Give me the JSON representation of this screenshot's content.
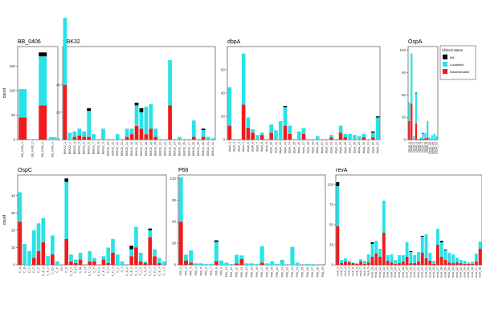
{
  "legend": {
    "title": "Clinical status",
    "entries": [
      {
        "name": "NA",
        "color": "#000000"
      },
      {
        "name": "Localized",
        "color": "#29e2e8"
      },
      {
        "name": "Disseminated",
        "color": "#ee1c1c"
      }
    ]
  },
  "chart_data": [
    {
      "type": "bar",
      "title": "BB_0406",
      "ylabel": "count",
      "ylim": [
        0,
        190
      ],
      "yticks": [
        0,
        50,
        100,
        150
      ],
      "categories": [
        "BB_0406_1",
        "BB_0406_2",
        "BB_0406_3",
        "BB_0406_4"
      ],
      "series": [
        {
          "name": "Disseminated",
          "values": [
            45,
            0,
            70,
            0
          ]
        },
        {
          "name": "Localized",
          "values": [
            58,
            0,
            100,
            5
          ]
        },
        {
          "name": "NA",
          "values": [
            0,
            0,
            8,
            0
          ]
        }
      ]
    },
    {
      "type": "bar",
      "title": "BBK32",
      "ylabel": "",
      "ylim": [
        0,
        68
      ],
      "yticks": [
        0,
        20,
        40
      ],
      "categories": [
        "BBK32_1",
        "BBK32_2",
        "BBK32_3",
        "BBK32_4",
        "BBK32_5",
        "BBK32_6",
        "BBK32_7",
        "BBK32_8",
        "BBK32_9",
        "BBK32_10",
        "BBK32_11",
        "BBK32_12",
        "BBK32_13",
        "BBK32_14",
        "BBK32_15",
        "BBK32_16",
        "BBK32_17",
        "BBK32_18",
        "BBK32_19",
        "BBK32_20",
        "BBK32_21",
        "BBK32_22",
        "BBK32_23",
        "BBK32_24",
        "BBK32_25",
        "BBK32_26",
        "BBK32_27",
        "BBK32_28",
        "BBK32_29",
        "BBK32_30",
        "BBK32_31",
        "BBK32_32"
      ],
      "series": [
        {
          "name": "Disseminated",
          "values": [
            40,
            0,
            2,
            3,
            2,
            2,
            0,
            0,
            0,
            0,
            0,
            0,
            0,
            2,
            4,
            10,
            8,
            4,
            8,
            2,
            0,
            0,
            25,
            0,
            0,
            0,
            0,
            2,
            0,
            2,
            0,
            0
          ]
        },
        {
          "name": "Localized",
          "values": [
            49,
            5,
            4,
            5,
            4,
            19,
            4,
            0,
            8,
            0,
            0,
            4,
            0,
            6,
            4,
            15,
            12,
            20,
            18,
            6,
            0,
            0,
            33,
            0,
            2,
            0,
            0,
            12,
            0,
            5,
            2,
            1
          ]
        },
        {
          "name": "NA",
          "values": [
            0,
            0,
            0,
            0,
            0,
            2,
            0,
            0,
            0,
            0,
            0,
            0,
            0,
            0,
            0,
            2,
            3,
            0,
            0,
            0,
            0,
            0,
            0,
            0,
            0,
            0,
            0,
            0,
            0,
            1,
            0,
            0
          ]
        }
      ]
    },
    {
      "type": "bar",
      "title": "dbpA",
      "ylabel": "",
      "ylim": [
        0,
        80
      ],
      "yticks": [
        0,
        20,
        40,
        60
      ],
      "categories": [
        "dbpA_1",
        "dbpA_2",
        "dbpA_3",
        "dbpA_4",
        "dbpA_5",
        "dbpA_6",
        "dbpA_7",
        "dbpA_8",
        "dbpA_9",
        "dbpA_10",
        "dbpA_11",
        "dbpA_12",
        "dbpA_13",
        "dbpA_14",
        "dbpA_15",
        "dbpA_16",
        "dbpA_17",
        "dbpA_18",
        "dbpA_19",
        "dbpA_20",
        "dbpA_21",
        "dbpA_22",
        "dbpA_23",
        "dbpA_24",
        "dbpA_25",
        "dbpA_26",
        "dbpA_27",
        "dbpA_28",
        "dbpA_29",
        "dbpA_30",
        "dbpA_31",
        "dbpA_32",
        "dbpA_33"
      ],
      "series": [
        {
          "name": "Disseminated",
          "values": [
            12,
            0,
            0,
            30,
            10,
            6,
            0,
            4,
            0,
            6,
            0,
            0,
            12,
            5,
            0,
            0,
            5,
            0,
            0,
            0,
            0,
            0,
            2,
            0,
            6,
            2,
            0,
            0,
            0,
            2,
            0,
            2,
            0
          ]
        },
        {
          "name": "Localized",
          "values": [
            33,
            0,
            0,
            44,
            9,
            3,
            4,
            2,
            0,
            7,
            8,
            16,
            16,
            7,
            0,
            7,
            5,
            0,
            0,
            3,
            0,
            0,
            2,
            0,
            6,
            3,
            5,
            4,
            3,
            3,
            0,
            4,
            19
          ]
        },
        {
          "name": "NA",
          "values": [
            0,
            0,
            0,
            0,
            0,
            0,
            0,
            0,
            0,
            0,
            0,
            0,
            1,
            0,
            0,
            0,
            0,
            0,
            0,
            0,
            0,
            0,
            0,
            0,
            0,
            0,
            0,
            0,
            0,
            0,
            0,
            1,
            1
          ]
        }
      ]
    },
    {
      "type": "bar",
      "title": "OspA",
      "ylabel": "",
      "ylim": [
        0,
        125
      ],
      "yticks": [
        0,
        30,
        60,
        90,
        120
      ],
      "categories": [
        "OspA_1",
        "OspA_2",
        "OspA_3",
        "OspA_4",
        "OspA_5",
        "OspA_6",
        "OspA_7",
        "OspA_8",
        "OspA_9",
        "OspA_10",
        "OspA_11",
        "OspA_12",
        "OspA_13"
      ],
      "series": [
        {
          "name": "Disseminated",
          "values": [
            25,
            48,
            0,
            22,
            0,
            1,
            1,
            2,
            3,
            0,
            0,
            0,
            0
          ]
        },
        {
          "name": "Localized",
          "values": [
            25,
            68,
            5,
            40,
            0,
            2,
            7,
            7,
            22,
            3,
            6,
            8,
            5
          ]
        },
        {
          "name": "NA",
          "values": [
            0,
            0,
            0,
            1,
            0,
            0,
            1,
            0,
            0,
            0,
            0,
            0,
            0
          ]
        }
      ]
    },
    {
      "type": "bar",
      "title": "OspC",
      "ylabel": "count",
      "ylim": [
        0,
        52
      ],
      "yticks": [
        0,
        10,
        20,
        30,
        40
      ],
      "categories": [
        "C_A",
        "C_B",
        "C_C",
        "C_D",
        "C_E",
        "C_E_1",
        "C_E_2",
        "C_E3",
        "C_F",
        "E3",
        "C_K",
        "C_K_1",
        "C_N",
        "C_M",
        "C_U",
        "C_U_1",
        "C_T",
        "C_U_2",
        "C_F_1",
        "C_H",
        "C_H_1",
        "C_L",
        "C_J",
        "C_A_2",
        "C_B_2",
        "C_L_1",
        "C_J_2",
        "C_A_3",
        "C_C_1",
        "C_N_1",
        "C_E_3",
        "C_J_3"
      ],
      "series": [
        {
          "name": "Disseminated",
          "values": [
            25,
            0,
            0,
            4,
            8,
            13,
            0,
            6,
            0,
            0,
            15,
            2,
            1,
            3,
            0,
            2,
            2,
            0,
            3,
            1,
            7,
            0,
            0,
            0,
            5,
            10,
            2,
            1,
            16,
            5,
            1,
            0
          ]
        },
        {
          "name": "Localized",
          "values": [
            17,
            12,
            8,
            16,
            16,
            14,
            5,
            11,
            2,
            0,
            33,
            4,
            2,
            4,
            0,
            6,
            2,
            0,
            2,
            9,
            8,
            6,
            2,
            0,
            4,
            12,
            5,
            1,
            4,
            4,
            3,
            2
          ]
        },
        {
          "name": "NA",
          "values": [
            0,
            0,
            0,
            0,
            0,
            0,
            0,
            0,
            0,
            0,
            2,
            0,
            0,
            0,
            0,
            0,
            0,
            0,
            0,
            0,
            0,
            0,
            0,
            0,
            2,
            0,
            0,
            0,
            1,
            0,
            0,
            0
          ]
        }
      ]
    },
    {
      "type": "bar",
      "title": "P66",
      "ylabel": "",
      "ylim": [
        0,
        125
      ],
      "yticks": [
        0,
        30,
        60,
        90,
        120
      ],
      "categories": [
        "P66_1",
        "P66_2",
        "P66_3",
        "P66_4",
        "P66_5",
        "P66_6",
        "P66_7",
        "P66_8",
        "P66_9",
        "P66_10",
        "P66_11",
        "P66_12",
        "P66_13",
        "P66_14",
        "P66_15",
        "P66_16",
        "P66_17",
        "P66_18",
        "P66_19",
        "P66_20",
        "P66_21",
        "P66_22",
        "P66_23",
        "P66_24",
        "P66_25",
        "P66_26",
        "P66_27",
        "P66_28",
        "P66_29"
      ],
      "series": [
        {
          "name": "Disseminated",
          "values": [
            60,
            6,
            3,
            0,
            0,
            0,
            0,
            5,
            0,
            0,
            0,
            2,
            8,
            0,
            0,
            0,
            3,
            0,
            0,
            0,
            0,
            0,
            0,
            0,
            0,
            0,
            0,
            0,
            0
          ]
        },
        {
          "name": "Localized",
          "values": [
            62,
            8,
            17,
            2,
            2,
            1,
            1,
            27,
            6,
            3,
            1,
            12,
            5,
            2,
            2,
            1,
            23,
            2,
            5,
            1,
            7,
            0,
            25,
            3,
            0,
            1,
            1,
            0,
            0
          ]
        },
        {
          "name": "NA",
          "values": [
            0,
            0,
            0,
            0,
            0,
            0,
            0,
            2,
            0,
            0,
            0,
            0,
            0,
            0,
            0,
            0,
            0,
            0,
            0,
            0,
            0,
            0,
            0,
            0,
            0,
            0,
            0,
            0,
            0
          ]
        }
      ]
    },
    {
      "type": "bar",
      "title": "revA",
      "ylabel": "",
      "ylim": [
        0,
        112
      ],
      "yticks": [
        0,
        25,
        50,
        75,
        100
      ],
      "categories": [
        "revA_1",
        "revA_2",
        "revA_3",
        "revA_4",
        "revA_5",
        "revA_6",
        "revA_7",
        "revA_8",
        "revA_9",
        "revA_10",
        "revA_11",
        "revA_12",
        "revA_13",
        "revA_14",
        "revA_15",
        "revA_16",
        "revA_17",
        "revA_18",
        "revA_19",
        "revA_20",
        "revA_21",
        "revA_22",
        "revA_23",
        "revA_24",
        "revA_25",
        "revA_26",
        "revA_27",
        "revA_28",
        "revA_29",
        "revA_30",
        "revA_31",
        "revA_32",
        "revA_33",
        "revA_34",
        "revA_35",
        "revA_36",
        "revA_37",
        "revA_38"
      ],
      "series": [
        {
          "name": "Disseminated",
          "values": [
            48,
            2,
            4,
            3,
            2,
            1,
            4,
            1,
            3,
            10,
            14,
            10,
            40,
            5,
            3,
            1,
            2,
            4,
            10,
            2,
            2,
            4,
            15,
            8,
            5,
            1,
            25,
            10,
            6,
            3,
            2,
            3,
            2,
            1,
            1,
            1,
            4,
            20
          ]
        },
        {
          "name": "Localized",
          "values": [
            50,
            4,
            4,
            2,
            1,
            1,
            3,
            4,
            10,
            16,
            16,
            10,
            40,
            7,
            10,
            5,
            10,
            8,
            18,
            14,
            10,
            12,
            20,
            30,
            10,
            4,
            20,
            18,
            12,
            12,
            11,
            6,
            4,
            4,
            2,
            3,
            10,
            9
          ]
        },
        {
          "name": "NA",
          "values": [
            5,
            0,
            0,
            0,
            0,
            0,
            0,
            0,
            0,
            2,
            0,
            0,
            0,
            0,
            0,
            0,
            0,
            0,
            0,
            1,
            0,
            0,
            1,
            0,
            0,
            0,
            0,
            2,
            1,
            0,
            0,
            0,
            0,
            0,
            0,
            0,
            0,
            0
          ]
        }
      ]
    }
  ]
}
